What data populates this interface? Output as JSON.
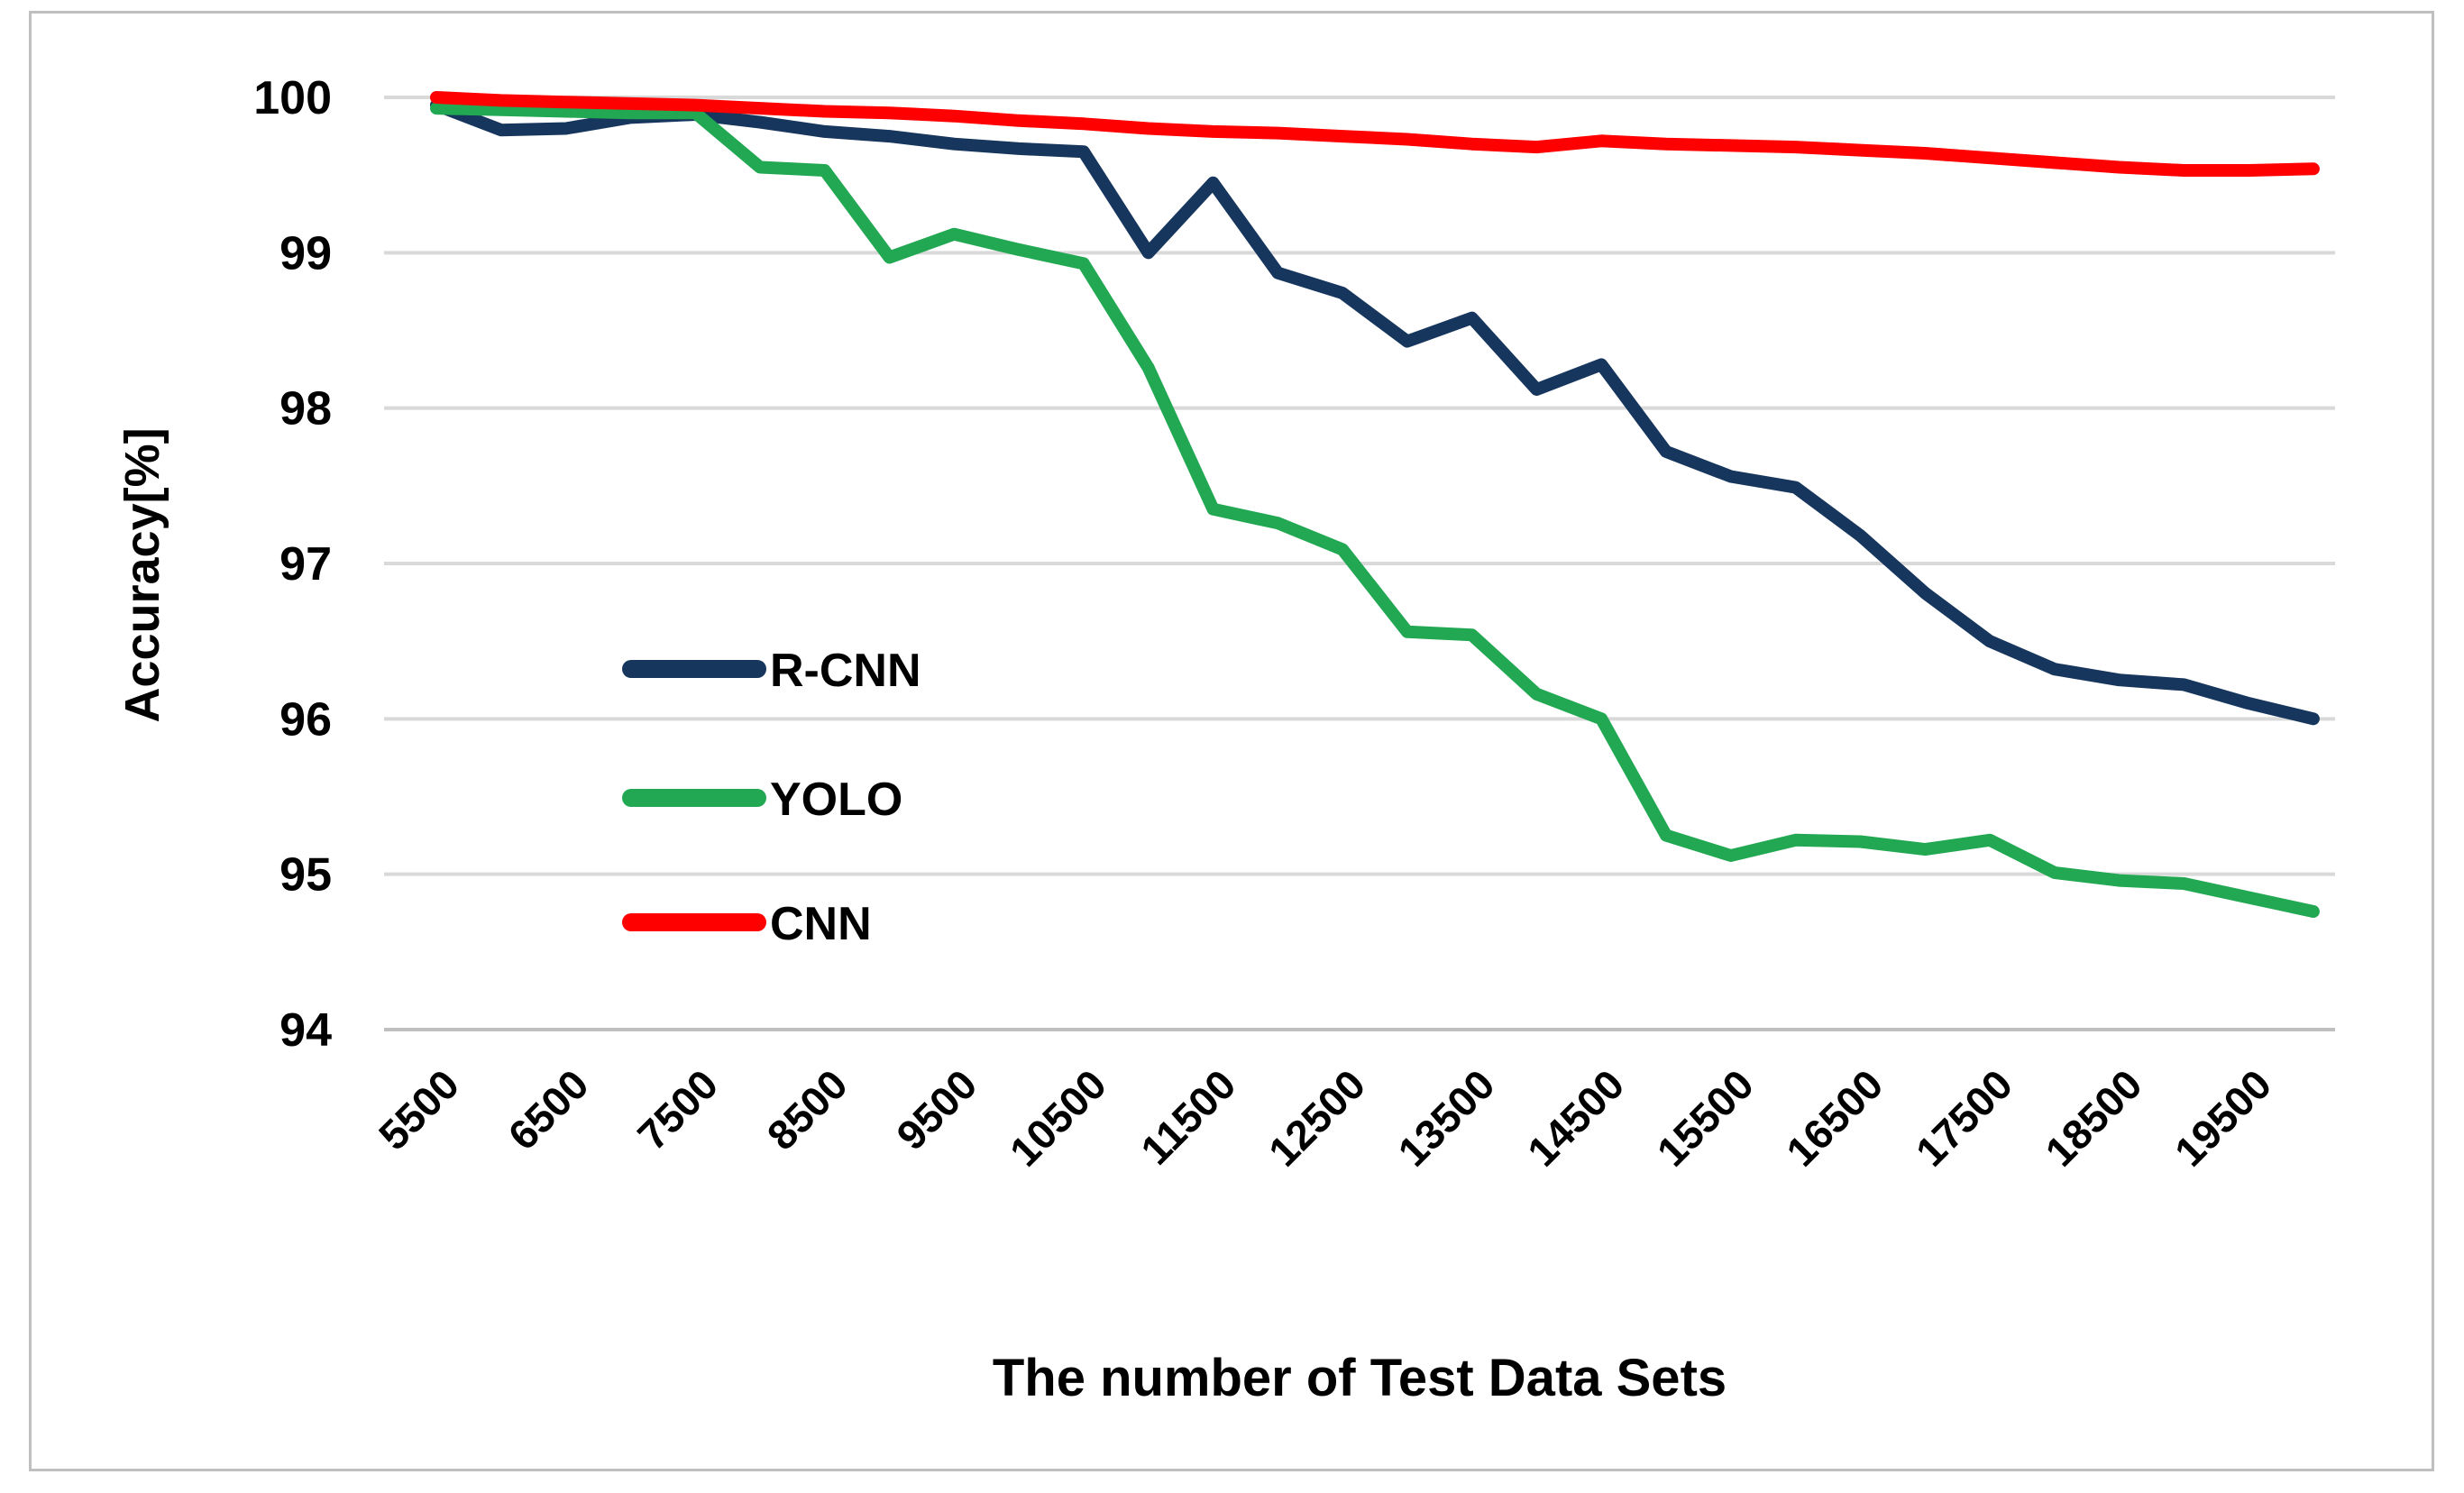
{
  "figure": {
    "background": "#FFFFFF",
    "border_color": "#BFBFBF",
    "gridline_color": "#D9D9D9",
    "axisline_color": "#BFBFBF"
  },
  "chart_data": {
    "type": "line",
    "title": "",
    "xlabel": "The number of Test Data Sets",
    "ylabel": "Accuracy[%]",
    "ylim": [
      94,
      100
    ],
    "y_ticks": [
      100,
      99,
      98,
      97,
      96,
      95,
      94
    ],
    "grid": true,
    "legend_position": "middle-left",
    "x": [
      5500,
      6000,
      6500,
      7000,
      7500,
      8000,
      8500,
      9000,
      9500,
      10000,
      10500,
      11000,
      11500,
      12000,
      12500,
      13000,
      13500,
      14000,
      14500,
      15000,
      15500,
      16000,
      16500,
      17000,
      17500,
      18000,
      18500,
      19000,
      19500,
      20000
    ],
    "x_tick_labels": [
      "5500",
      "6500",
      "7500",
      "8500",
      "9500",
      "10500",
      "11500",
      "12500",
      "13500",
      "14500",
      "15500",
      "16500",
      "17500",
      "18500",
      "19500"
    ],
    "series": [
      {
        "name": "R-CNN",
        "color": "#17365D",
        "values": [
          99.95,
          99.79,
          99.8,
          99.87,
          99.89,
          99.84,
          99.78,
          99.75,
          99.7,
          99.67,
          99.65,
          99.0,
          99.45,
          98.87,
          98.74,
          98.43,
          98.58,
          98.12,
          98.28,
          97.72,
          97.56,
          97.49,
          97.18,
          96.81,
          96.5,
          96.32,
          96.25,
          96.22,
          96.1,
          96.0
        ]
      },
      {
        "name": "YOLO",
        "color": "#22A852",
        "values": [
          99.93,
          99.92,
          99.91,
          99.9,
          99.9,
          99.55,
          99.53,
          98.97,
          99.12,
          99.02,
          98.93,
          98.26,
          97.35,
          97.26,
          97.09,
          96.56,
          96.54,
          96.16,
          96.0,
          95.25,
          95.12,
          95.22,
          95.21,
          95.16,
          95.22,
          95.01,
          94.96,
          94.94,
          94.85,
          94.76
        ]
      },
      {
        "name": "CNN",
        "color": "#FF0000",
        "values": [
          100.0,
          99.98,
          99.97,
          99.96,
          99.95,
          99.93,
          99.91,
          99.9,
          99.88,
          99.85,
          99.83,
          99.8,
          99.78,
          99.77,
          99.75,
          99.73,
          99.7,
          99.68,
          99.72,
          99.7,
          99.69,
          99.68,
          99.66,
          99.64,
          99.61,
          99.58,
          99.55,
          99.53,
          99.53,
          99.54
        ]
      }
    ]
  }
}
